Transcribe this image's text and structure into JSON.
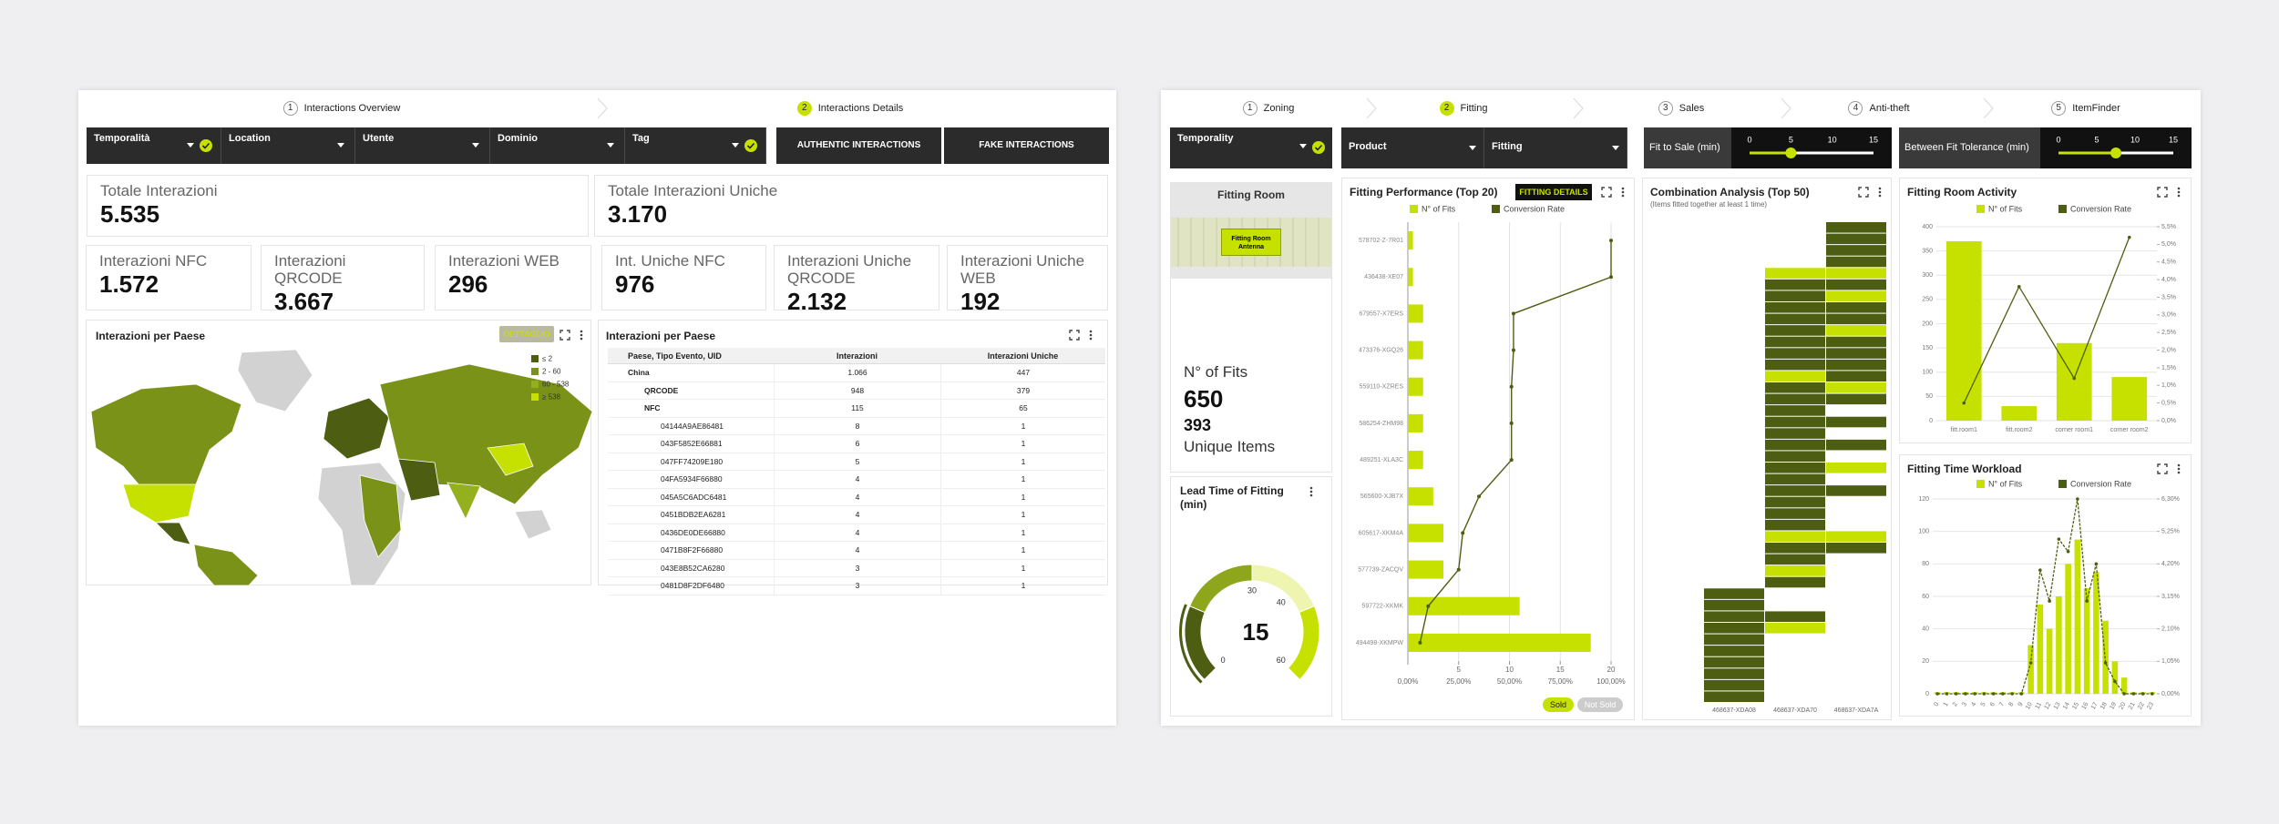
{
  "left": {
    "steps": [
      {
        "num": "1",
        "label": "Interactions Overview"
      },
      {
        "num": "2",
        "label": "Interactions Details"
      }
    ],
    "filters": [
      "Temporalità",
      "Location",
      "Utente",
      "Dominio",
      "Tag"
    ],
    "buttons": [
      "AUTHENTIC INTERACTIONS",
      "FAKE INTERACTIONS"
    ],
    "kpis": [
      {
        "label": "Totale Interazioni",
        "value": "5.535"
      },
      {
        "label": "Totale Interazioni Uniche",
        "value": "3.170"
      },
      {
        "label": "Interazioni NFC",
        "value": "1.572"
      },
      {
        "label": "Interazioni QRCODE",
        "value": "3.667"
      },
      {
        "label": "Interazioni WEB",
        "value": "296"
      },
      {
        "label": "Int. Uniche NFC",
        "value": "976"
      },
      {
        "label": "Interazioni Uniche QRCODE",
        "value": "2.132"
      },
      {
        "label": "Interazioni Uniche WEB",
        "value": "192"
      }
    ],
    "map": {
      "title": "Interazioni per Paese",
      "button": "DETTAGLIO",
      "legend": [
        "≤ 2",
        "2 - 60",
        "60 - 538",
        "≥ 538"
      ]
    },
    "table": {
      "title": "Interazioni per Paese",
      "header": [
        "Paese, Tipo Evento, UID",
        "Interazioni",
        "Interazioni Uniche"
      ],
      "rows": [
        [
          "China",
          "1.066",
          "447"
        ],
        [
          "QRCODE",
          "948",
          "379"
        ],
        [
          "NFC",
          "115",
          "65"
        ],
        [
          "04144A9AE86481",
          "8",
          "1"
        ],
        [
          "043F5852E66881",
          "6",
          "1"
        ],
        [
          "047FF74209E180",
          "5",
          "1"
        ],
        [
          "04FA5934F66880",
          "4",
          "1"
        ],
        [
          "045A5C6ADC6481",
          "4",
          "1"
        ],
        [
          "0451BDB2EA6281",
          "4",
          "1"
        ],
        [
          "0436DE0DE66880",
          "4",
          "1"
        ],
        [
          "0471B8F2F66880",
          "4",
          "1"
        ],
        [
          "043E8B52CA6280",
          "3",
          "1"
        ],
        [
          "0481D8F2DF6480",
          "3",
          "1"
        ]
      ]
    }
  },
  "right": {
    "steps": [
      {
        "num": "1",
        "label": "Zoning"
      },
      {
        "num": "2",
        "label": "Fitting"
      },
      {
        "num": "3",
        "label": "Sales"
      },
      {
        "num": "4",
        "label": "Anti-theft"
      },
      {
        "num": "5",
        "label": "ItemFinder"
      }
    ],
    "filters": [
      "Temporality",
      "Product",
      "Fitting"
    ],
    "sliders": [
      {
        "label": "Fit to Sale (min)",
        "range": [
          0,
          15
        ],
        "ticks": [
          0,
          5,
          10,
          15
        ],
        "value": 5
      },
      {
        "label": "Between Fit Tolerance (min)",
        "range": [
          0,
          15
        ],
        "ticks": [
          0,
          5,
          10,
          15
        ],
        "value": 7.5
      }
    ],
    "fitting_room": {
      "title": "Fitting Room",
      "antenna": "Fitting Room Antenna",
      "fits_label": "N° of Fits",
      "fits": "650",
      "unique": "393",
      "unique_label": "Unique Items"
    },
    "lead_time": {
      "title": "Lead Time of Fitting (min)",
      "value": 15,
      "range": [
        0,
        60
      ],
      "ticks": [
        0,
        30,
        40,
        60
      ]
    },
    "performance": {
      "title": "Fitting Performance (Top 20)",
      "button": "FITTING DETAILS",
      "legend": [
        "N° of Fits",
        "Conversion Rate"
      ],
      "rows": [
        "578702-Z-7R01",
        "436438-XE07",
        "679557-X7ERS",
        "473376-XGQ26",
        "559110-XZRES",
        "586254-ZHM98",
        "489251-XLA3C",
        "565600-XJB7X",
        "605617-XKM4A",
        "577739-ZACQV",
        "597722-XKMK",
        "494498-XKMPW"
      ],
      "fits": [
        0.5,
        0.5,
        1.5,
        1.5,
        1.5,
        1.5,
        1.5,
        2.5,
        3.5,
        3.5,
        11,
        18
      ],
      "conversion": [
        100,
        100,
        52,
        52,
        51,
        51,
        51,
        35,
        27,
        25,
        10,
        6
      ],
      "fits_xlim": [
        0,
        20
      ],
      "fits_xticks": [
        5,
        10,
        15,
        20
      ],
      "conversion_xlim": [
        0,
        100
      ],
      "conversion_xticks": [
        {
          "value": 0,
          "label": "0,00%"
        },
        {
          "value": 25,
          "label": "25,00%"
        },
        {
          "value": 50,
          "label": "50,00%"
        },
        {
          "value": 75,
          "label": "75,00%"
        },
        {
          "value": 100,
          "label": "100,00%"
        }
      ],
      "toggles": [
        "Sold",
        "Not Sold"
      ]
    },
    "combination": {
      "title": "Combination Analysis (Top 50)",
      "subtitle": "(Items fitted together at least 1 time)",
      "columns": [
        "468637-XDA08",
        "468637-XDA70",
        "468637-XDA7A"
      ]
    },
    "activity": {
      "title": "Fitting Room Activity",
      "legend": [
        "N° of Fits",
        "Conversion Rate"
      ],
      "categories": [
        "fitt.room1",
        "fitt.room2",
        "corner room1",
        "corner room2"
      ],
      "fits": [
        370,
        30,
        160,
        90
      ],
      "conversion": [
        0.5,
        3.8,
        1.2,
        5.2
      ],
      "ylim": [
        0,
        400
      ],
      "yticks": [
        0,
        50,
        100,
        150,
        200,
        250,
        300,
        350,
        400
      ],
      "y2lim": [
        0,
        5.5
      ],
      "y2ticks": [
        {
          "value": 0,
          "label": "0,0%"
        },
        {
          "value": 0.5,
          "label": "0,5%"
        },
        {
          "value": 1,
          "label": "1,0%"
        },
        {
          "value": 1.5,
          "label": "1,5%"
        },
        {
          "value": 2,
          "label": "2,0%"
        },
        {
          "value": 2.5,
          "label": "2,5%"
        },
        {
          "value": 3,
          "label": "3,0%"
        },
        {
          "value": 3.5,
          "label": "3,5%"
        },
        {
          "value": 4,
          "label": "4,0%"
        },
        {
          "value": 4.5,
          "label": "4,5%"
        },
        {
          "value": 5,
          "label": "5,0%"
        },
        {
          "value": 5.5,
          "label": "5,5%"
        }
      ]
    },
    "workload": {
      "title": "Fitting Time Workload",
      "legend": [
        "N° of Fits",
        "Conversion Rate"
      ],
      "categories": [
        "0",
        "1",
        "2",
        "3",
        "4",
        "5",
        "6",
        "7",
        "8",
        "9",
        "10",
        "11",
        "12",
        "13",
        "14",
        "15",
        "16",
        "17",
        "18",
        "19",
        "20",
        "21",
        "22",
        "23"
      ],
      "fits": [
        1,
        1,
        1,
        1,
        1,
        1,
        1,
        1,
        1,
        1,
        30,
        55,
        40,
        60,
        80,
        95,
        65,
        75,
        45,
        20,
        10,
        1,
        1,
        1
      ],
      "conversion": [
        0,
        0,
        0,
        0,
        0,
        0,
        0,
        0,
        0,
        0,
        1,
        4,
        3,
        5,
        4.6,
        6.3,
        3,
        4.2,
        1,
        0.4,
        0,
        0,
        0,
        0
      ],
      "ylim": [
        0,
        120
      ],
      "yticks": [
        0,
        20,
        40,
        60,
        80,
        100,
        120
      ],
      "y2lim": [
        0,
        6.3
      ],
      "y2ticks": [
        {
          "value": 0,
          "label": "0,00%"
        },
        {
          "value": 1.05,
          "label": "1,05%"
        },
        {
          "value": 2.1,
          "label": "2,10%"
        },
        {
          "value": 3.15,
          "label": "3,15%"
        },
        {
          "value": 4.2,
          "label": "4,20%"
        },
        {
          "value": 5.25,
          "label": "5,25%"
        },
        {
          "value": 6.3,
          "label": "6,30%"
        }
      ]
    }
  }
}
